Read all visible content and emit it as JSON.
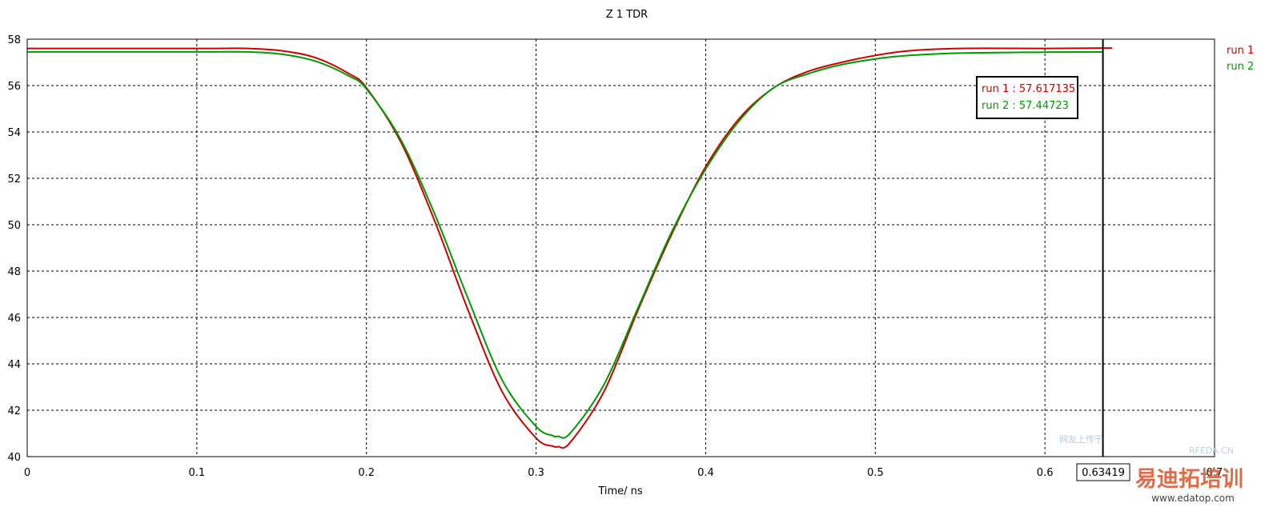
{
  "chart_data": {
    "type": "line",
    "title": "Z 1 TDR",
    "xlabel": "Time/ ns",
    "ylabel": "",
    "xlim": [
      0,
      0.7
    ],
    "ylim": [
      40,
      58
    ],
    "xticks": [
      "0",
      "0.1",
      "0.2",
      "0.3",
      "0.4",
      "0.5",
      "0.6",
      "0.7"
    ],
    "yticks": [
      "40",
      "42",
      "44",
      "46",
      "48",
      "50",
      "52",
      "54",
      "56",
      "58"
    ],
    "grid": true,
    "legend_position": "right",
    "series": [
      {
        "name": "run 1",
        "color": "#cc0000",
        "x": [
          0,
          0.1,
          0.13,
          0.15,
          0.17,
          0.19,
          0.2,
          0.22,
          0.24,
          0.26,
          0.28,
          0.3,
          0.31,
          0.313,
          0.32,
          0.34,
          0.36,
          0.38,
          0.4,
          0.42,
          0.44,
          0.46,
          0.48,
          0.5,
          0.52,
          0.55,
          0.6,
          0.634
        ],
        "y": [
          57.6,
          57.6,
          57.6,
          57.5,
          57.2,
          56.5,
          55.9,
          53.6,
          50.2,
          46.3,
          42.8,
          40.8,
          40.45,
          40.43,
          40.6,
          42.8,
          46.3,
          49.6,
          52.5,
          54.6,
          55.9,
          56.6,
          57.0,
          57.3,
          57.5,
          57.6,
          57.6,
          57.617135
        ]
      },
      {
        "name": "run 2",
        "color": "#009900",
        "x": [
          0,
          0.1,
          0.13,
          0.15,
          0.17,
          0.19,
          0.2,
          0.22,
          0.24,
          0.26,
          0.28,
          0.3,
          0.31,
          0.313,
          0.32,
          0.34,
          0.36,
          0.38,
          0.4,
          0.42,
          0.44,
          0.46,
          0.48,
          0.5,
          0.52,
          0.55,
          0.6,
          0.634
        ],
        "y": [
          57.45,
          57.45,
          57.45,
          57.35,
          57.05,
          56.4,
          55.85,
          53.7,
          50.5,
          46.8,
          43.3,
          41.3,
          40.9,
          40.88,
          41.0,
          43.1,
          46.4,
          49.7,
          52.4,
          54.5,
          55.9,
          56.5,
          56.9,
          57.15,
          57.3,
          57.4,
          57.44,
          57.44723
        ]
      }
    ],
    "cursor": {
      "x": 0.63419,
      "x_label": "0.63419",
      "readout": [
        {
          "text": "run 1 : 57.617135",
          "color": "#cc0000"
        },
        {
          "text": "run 2 : 57.44723",
          "color": "#009900"
        }
      ]
    }
  },
  "watermark": {
    "text": "易迪拓培训",
    "url": "www.edatop.com",
    "mark": "RFEDA.CN",
    "slogan": "网友上传于"
  }
}
